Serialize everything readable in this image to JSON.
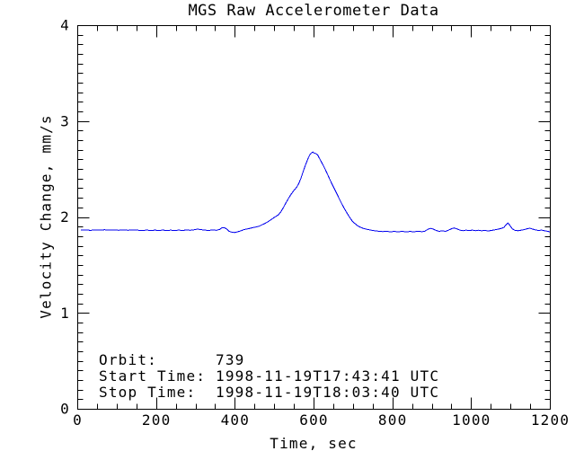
{
  "chart_data": {
    "type": "line",
    "title": "MGS Raw Accelerometer Data",
    "xlabel": "Time, sec",
    "ylabel": "Velocity Change, mm/s",
    "xlim": [
      0,
      1200
    ],
    "ylim": [
      0,
      4
    ],
    "xticks": [
      0,
      200,
      400,
      600,
      800,
      1000,
      1200
    ],
    "yticks": [
      0,
      1,
      2,
      3,
      4
    ],
    "x_minor_step": 50,
    "y_minor_step": 0.1,
    "grid": false,
    "legend": "none",
    "axis_color": "#000000",
    "background_color": "#ffffff",
    "annotations": [
      "Orbit:      739",
      "Start Time: 1998-11-19T17:43:41 UTC",
      "Stop Time:  1998-11-19T18:03:40 UTC"
    ],
    "series": [
      {
        "name": "velocity-change",
        "color": "#0000ee",
        "points": [
          [
            8,
            1.868
          ],
          [
            20,
            1.871
          ],
          [
            32,
            1.865
          ],
          [
            44,
            1.87
          ],
          [
            56,
            1.867
          ],
          [
            68,
            1.872
          ],
          [
            80,
            1.867
          ],
          [
            92,
            1.871
          ],
          [
            104,
            1.866
          ],
          [
            116,
            1.87
          ],
          [
            128,
            1.866
          ],
          [
            140,
            1.871
          ],
          [
            152,
            1.867
          ],
          [
            164,
            1.863
          ],
          [
            176,
            1.869
          ],
          [
            186,
            1.862
          ],
          [
            196,
            1.868
          ],
          [
            206,
            1.863
          ],
          [
            216,
            1.869
          ],
          [
            226,
            1.862
          ],
          [
            236,
            1.868
          ],
          [
            246,
            1.862
          ],
          [
            256,
            1.868
          ],
          [
            266,
            1.864
          ],
          [
            276,
            1.869
          ],
          [
            286,
            1.866
          ],
          [
            296,
            1.872
          ],
          [
            304,
            1.878
          ],
          [
            312,
            1.874
          ],
          [
            322,
            1.868
          ],
          [
            332,
            1.864
          ],
          [
            342,
            1.869
          ],
          [
            352,
            1.866
          ],
          [
            360,
            1.874
          ],
          [
            366,
            1.89
          ],
          [
            372,
            1.894
          ],
          [
            378,
            1.88
          ],
          [
            384,
            1.856
          ],
          [
            390,
            1.847
          ],
          [
            398,
            1.843
          ],
          [
            406,
            1.85
          ],
          [
            414,
            1.86
          ],
          [
            420,
            1.87
          ],
          [
            428,
            1.878
          ],
          [
            436,
            1.885
          ],
          [
            444,
            1.893
          ],
          [
            452,
            1.9
          ],
          [
            460,
            1.907
          ],
          [
            468,
            1.923
          ],
          [
            476,
            1.938
          ],
          [
            484,
            1.958
          ],
          [
            492,
            1.98
          ],
          [
            498,
            1.997
          ],
          [
            504,
            2.012
          ],
          [
            510,
            2.028
          ],
          [
            516,
            2.06
          ],
          [
            522,
            2.1
          ],
          [
            528,
            2.145
          ],
          [
            534,
            2.19
          ],
          [
            540,
            2.23
          ],
          [
            546,
            2.265
          ],
          [
            551,
            2.29
          ],
          [
            556,
            2.315
          ],
          [
            561,
            2.35
          ],
          [
            566,
            2.4
          ],
          [
            571,
            2.46
          ],
          [
            576,
            2.52
          ],
          [
            581,
            2.575
          ],
          [
            585,
            2.615
          ],
          [
            589,
            2.65
          ],
          [
            593,
            2.672
          ],
          [
            597,
            2.682
          ],
          [
            600,
            2.673
          ],
          [
            603,
            2.668
          ],
          [
            606,
            2.662
          ],
          [
            610,
            2.645
          ],
          [
            614,
            2.615
          ],
          [
            618,
            2.585
          ],
          [
            622,
            2.555
          ],
          [
            627,
            2.515
          ],
          [
            632,
            2.47
          ],
          [
            637,
            2.425
          ],
          [
            642,
            2.38
          ],
          [
            648,
            2.33
          ],
          [
            654,
            2.28
          ],
          [
            660,
            2.23
          ],
          [
            666,
            2.18
          ],
          [
            672,
            2.13
          ],
          [
            678,
            2.085
          ],
          [
            684,
            2.045
          ],
          [
            690,
            2.005
          ],
          [
            696,
            1.968
          ],
          [
            703,
            1.94
          ],
          [
            710,
            1.915
          ],
          [
            718,
            1.897
          ],
          [
            726,
            1.885
          ],
          [
            734,
            1.876
          ],
          [
            744,
            1.868
          ],
          [
            754,
            1.861
          ],
          [
            764,
            1.856
          ],
          [
            774,
            1.852
          ],
          [
            784,
            1.855
          ],
          [
            794,
            1.85
          ],
          [
            804,
            1.854
          ],
          [
            814,
            1.85
          ],
          [
            824,
            1.855
          ],
          [
            834,
            1.849
          ],
          [
            844,
            1.854
          ],
          [
            854,
            1.85
          ],
          [
            864,
            1.856
          ],
          [
            874,
            1.851
          ],
          [
            882,
            1.858
          ],
          [
            890,
            1.878
          ],
          [
            896,
            1.886
          ],
          [
            902,
            1.88
          ],
          [
            910,
            1.864
          ],
          [
            918,
            1.855
          ],
          [
            926,
            1.861
          ],
          [
            934,
            1.855
          ],
          [
            942,
            1.868
          ],
          [
            950,
            1.884
          ],
          [
            956,
            1.89
          ],
          [
            962,
            1.882
          ],
          [
            970,
            1.868
          ],
          [
            978,
            1.861
          ],
          [
            986,
            1.868
          ],
          [
            994,
            1.862
          ],
          [
            1002,
            1.868
          ],
          [
            1010,
            1.861
          ],
          [
            1018,
            1.867
          ],
          [
            1026,
            1.86
          ],
          [
            1034,
            1.866
          ],
          [
            1042,
            1.859
          ],
          [
            1050,
            1.864
          ],
          [
            1058,
            1.87
          ],
          [
            1066,
            1.876
          ],
          [
            1074,
            1.884
          ],
          [
            1082,
            1.895
          ],
          [
            1088,
            1.925
          ],
          [
            1092,
            1.94
          ],
          [
            1096,
            1.924
          ],
          [
            1100,
            1.9
          ],
          [
            1104,
            1.88
          ],
          [
            1110,
            1.866
          ],
          [
            1118,
            1.861
          ],
          [
            1126,
            1.867
          ],
          [
            1134,
            1.874
          ],
          [
            1142,
            1.883
          ],
          [
            1148,
            1.888
          ],
          [
            1154,
            1.88
          ],
          [
            1162,
            1.87
          ],
          [
            1170,
            1.864
          ],
          [
            1178,
            1.868
          ],
          [
            1186,
            1.86
          ],
          [
            1194,
            1.855
          ],
          [
            1199,
            1.848
          ]
        ]
      }
    ]
  }
}
